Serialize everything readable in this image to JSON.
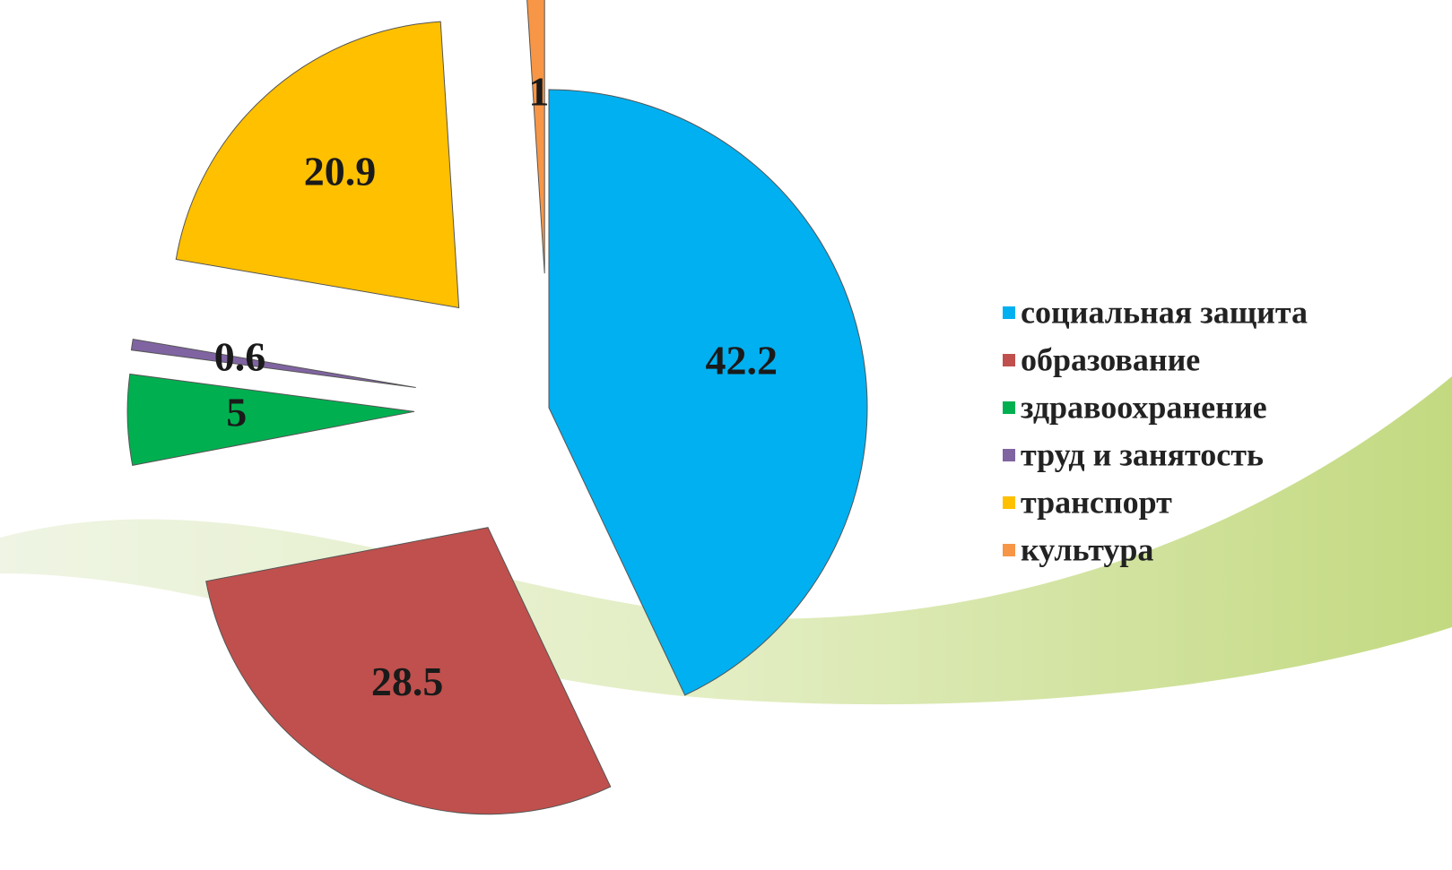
{
  "chart_data": {
    "type": "pie",
    "categories": [
      "социальная защита",
      "образование",
      "здравоохранение",
      "труд и занятость",
      "транспорт",
      "культура"
    ],
    "values": [
      42.2,
      28.5,
      5,
      0.6,
      20.9,
      1
    ],
    "colors": [
      "#00b0f0",
      "#c0504d",
      "#00b050",
      "#8064a2",
      "#ffc000",
      "#f79646"
    ],
    "legend": "right"
  }
}
